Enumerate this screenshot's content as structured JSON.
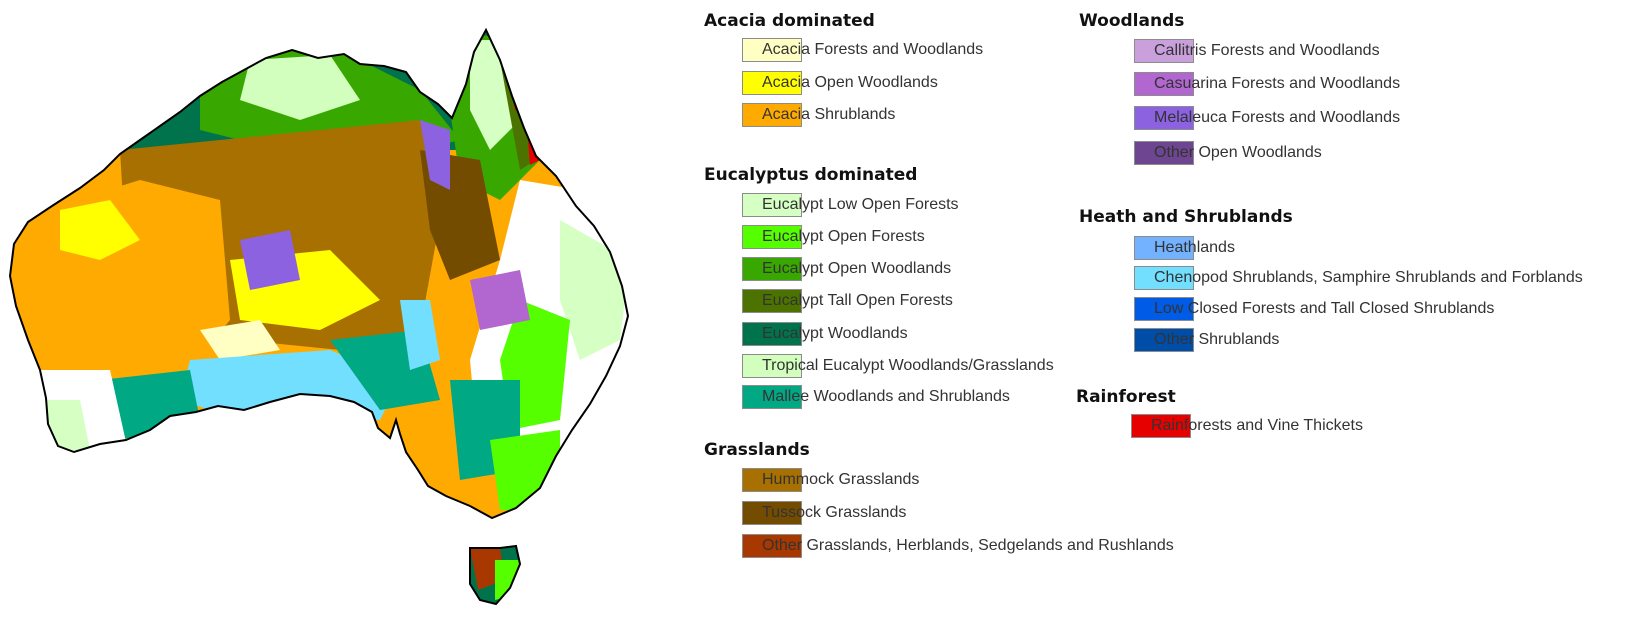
{
  "legend": {
    "left_column": [
      {
        "title": "Acacia dominated",
        "items": [
          {
            "label": "Acacia Forests and Woodlands",
            "color": "#ffffc4"
          },
          {
            "label": "Acacia Open Woodlands",
            "color": "#ffff00"
          },
          {
            "label": "Acacia Shrublands",
            "color": "#ffaa00"
          }
        ]
      },
      {
        "title": "Eucalyptus dominated",
        "items": [
          {
            "label": "Eucalypt Low Open Forests",
            "color": "#d6ffc4"
          },
          {
            "label": "Eucalypt Open Forests",
            "color": "#55ff00"
          },
          {
            "label": "Eucalypt Open Woodlands",
            "color": "#38a800"
          },
          {
            "label": "Eucalypt Tall Open Forests",
            "color": "#4c7300"
          },
          {
            "label": "Eucalypt Woodlands",
            "color": "#00734c"
          },
          {
            "label": "Tropical Eucalypt Woodlands/Grasslands",
            "color": "#d3ffbe"
          },
          {
            "label": "Mallee Woodlands and Shrublands",
            "color": "#00a884"
          }
        ]
      },
      {
        "title": "Grasslands",
        "items": [
          {
            "label": "Hummock Grasslands",
            "color": "#a87000"
          },
          {
            "label": "Tussock Grasslands",
            "color": "#734c00"
          },
          {
            "label": "Other Grasslands, Herblands, Sedgelands and Rushlands",
            "color": "#a83800"
          }
        ]
      }
    ],
    "right_column": [
      {
        "title": "Woodlands",
        "items": [
          {
            "label": "Callitris Forests and Woodlands",
            "color": "#c9a0dc"
          },
          {
            "label": "Casuarina Forests and Woodlands",
            "color": "#b266d0"
          },
          {
            "label": "Melaleuca Forests and Woodlands",
            "color": "#8c62e0"
          },
          {
            "label": "Other Open Woodlands",
            "color": "#6e4590"
          }
        ]
      },
      {
        "title": "Heath and Shrublands",
        "items": [
          {
            "label": "Heathlands",
            "color": "#73b2ff"
          },
          {
            "label": "Chenopod Shrublands, Samphire Shrublands and Forblands",
            "color": "#73dfff"
          },
          {
            "label": "Low Closed Forests and Tall Closed Shrublands",
            "color": "#005ce6"
          },
          {
            "label": "Other Shrublands",
            "color": "#004da8"
          }
        ]
      },
      {
        "title": "Rainforest",
        "items": [
          {
            "label": "Rainforests and Vine Thickets",
            "color": "#e60000"
          }
        ]
      }
    ]
  }
}
